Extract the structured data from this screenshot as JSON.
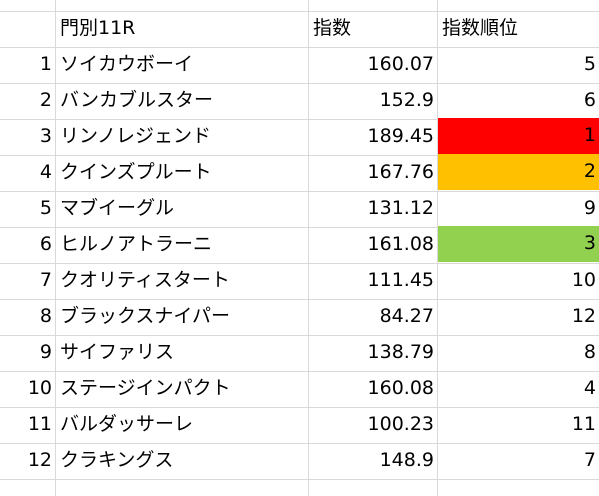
{
  "header": {
    "row_label": "",
    "name": "門別11R",
    "index": "指数",
    "rank": "指数順位"
  },
  "rows": [
    {
      "no": "1",
      "name": "ソイカウボーイ",
      "index": "160.07",
      "rank": "5",
      "fill": ""
    },
    {
      "no": "2",
      "name": "バンカブルスター",
      "index": "152.9",
      "rank": "6",
      "fill": ""
    },
    {
      "no": "3",
      "name": "リンノレジェンド",
      "index": "189.45",
      "rank": "1",
      "fill": "#ff0000"
    },
    {
      "no": "4",
      "name": "クインズプルート",
      "index": "167.76",
      "rank": "2",
      "fill": "#ffc000"
    },
    {
      "no": "5",
      "name": "マブイーグル",
      "index": "131.12",
      "rank": "9",
      "fill": ""
    },
    {
      "no": "6",
      "name": "ヒルノアトラーニ",
      "index": "161.08",
      "rank": "3",
      "fill": "#92d050"
    },
    {
      "no": "7",
      "name": "クオリティスタート",
      "index": "111.45",
      "rank": "10",
      "fill": ""
    },
    {
      "no": "8",
      "name": "ブラックスナイパー",
      "index": "84.27",
      "rank": "12",
      "fill": ""
    },
    {
      "no": "9",
      "name": "サイファリス",
      "index": "138.79",
      "rank": "8",
      "fill": ""
    },
    {
      "no": "10",
      "name": "ステージインパクト",
      "index": "160.08",
      "rank": "4",
      "fill": ""
    },
    {
      "no": "11",
      "name": "バルダッサーレ",
      "index": "100.23",
      "rank": "11",
      "fill": ""
    },
    {
      "no": "12",
      "name": "クラキングス",
      "index": "148.9",
      "rank": "7",
      "fill": ""
    }
  ],
  "colors": {
    "grid": "#d9d9d9",
    "rank_1": "#ff0000",
    "rank_2": "#ffc000",
    "rank_3": "#92d050"
  }
}
